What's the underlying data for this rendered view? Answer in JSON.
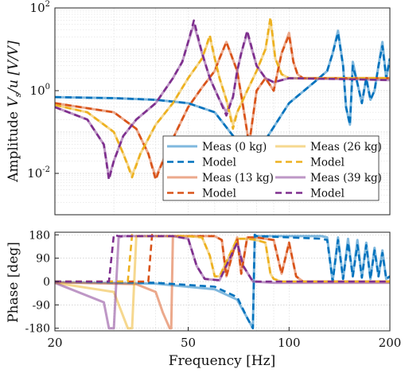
{
  "chart_data": [
    {
      "type": "line",
      "title": "",
      "xlabel": "",
      "ylabel": "Amplitude V_s/u [V/V]",
      "ylabel_parts": {
        "main": "Amplitude ",
        "math": "V",
        "sub": "s",
        "rest": "/u [V/V]"
      },
      "xscale": "log",
      "yscale": "log",
      "xlim": [
        20,
        200
      ],
      "ylim": [
        0.001,
        100
      ],
      "grid": true,
      "ytick_labels": [
        {
          "base": "10",
          "exp": "-2",
          "value": 0.01
        },
        {
          "base": "10",
          "exp": "0",
          "value": 1
        },
        {
          "base": "10",
          "exp": "2",
          "value": 100
        }
      ],
      "legend": {
        "placement": "lower-center",
        "entries": [
          {
            "label": "Meas (0 kg)",
            "series": "meas_0",
            "style": "solid-light"
          },
          {
            "label": "Meas (26 kg)",
            "series": "meas_26",
            "style": "solid-light"
          },
          {
            "label": "Model",
            "series": "model_0",
            "style": "dashed"
          },
          {
            "label": "Model",
            "series": "model_26",
            "style": "dashed"
          },
          {
            "label": "Meas (13 kg)",
            "series": "meas_13",
            "style": "solid-light"
          },
          {
            "label": "Meas (39 kg)",
            "series": "meas_39",
            "style": "solid-light"
          },
          {
            "label": "Model",
            "series": "model_13",
            "style": "dashed"
          },
          {
            "label": "Model",
            "series": "model_39",
            "style": "dashed"
          }
        ]
      },
      "series": [
        {
          "key": "meas_0",
          "color": "#0072BD",
          "dashed": false,
          "x": [
            20,
            30,
            40,
            50,
            60,
            70,
            80,
            100,
            120,
            130,
            135,
            140,
            145,
            148,
            152,
            155,
            160,
            165,
            170,
            175,
            180,
            185,
            190,
            195,
            200
          ],
          "y": [
            0.7,
            0.66,
            0.6,
            0.5,
            0.3,
            0.06,
            0.03,
            0.5,
            1.7,
            3,
            8,
            28,
            4,
            0.4,
            0.15,
            5,
            1.5,
            0.5,
            2,
            0.6,
            1,
            4,
            15,
            2,
            6
          ]
        },
        {
          "key": "model_0",
          "color": "#0072BD",
          "dashed": true,
          "x": [
            20,
            30,
            40,
            50,
            60,
            70,
            80,
            100,
            120,
            130,
            135,
            140,
            145,
            148,
            152,
            155,
            160,
            165,
            170,
            175,
            180,
            185,
            190,
            195,
            200
          ],
          "y": [
            0.7,
            0.66,
            0.6,
            0.5,
            0.3,
            0.06,
            0.03,
            0.5,
            1.7,
            3,
            8,
            25,
            4,
            0.4,
            0.15,
            4,
            1.5,
            0.5,
            2,
            0.6,
            1,
            4,
            12,
            2,
            6
          ]
        },
        {
          "key": "meas_13",
          "color": "#D95319",
          "dashed": false,
          "x": [
            20,
            30,
            35,
            38,
            40,
            42,
            45,
            50,
            55,
            60,
            62,
            65,
            70,
            73,
            76,
            80,
            85,
            90,
            95,
            100,
            103,
            106,
            110,
            120,
            150,
            200
          ],
          "y": [
            0.5,
            0.3,
            0.12,
            0.03,
            0.008,
            0.02,
            0.07,
            0.4,
            1.2,
            3,
            6,
            15,
            3,
            0.4,
            0.05,
            1,
            2,
            1,
            8,
            25,
            5,
            2.5,
            2,
            2,
            2,
            2
          ]
        },
        {
          "key": "model_13",
          "color": "#D95319",
          "dashed": true,
          "x": [
            20,
            30,
            35,
            38,
            40,
            42,
            45,
            50,
            55,
            60,
            62,
            65,
            70,
            73,
            76,
            80,
            85,
            90,
            95,
            100,
            103,
            106,
            110,
            120,
            150,
            200
          ],
          "y": [
            0.5,
            0.3,
            0.12,
            0.03,
            0.007,
            0.02,
            0.07,
            0.4,
            1.2,
            3,
            6,
            15,
            3,
            0.4,
            0.05,
            1,
            2,
            1,
            8,
            22,
            5,
            2.5,
            2,
            2,
            2,
            2
          ]
        },
        {
          "key": "meas_26",
          "color": "#EDB120",
          "dashed": false,
          "x": [
            20,
            25,
            30,
            32,
            34,
            36,
            40,
            45,
            50,
            55,
            58,
            60,
            62,
            65,
            68,
            70,
            75,
            80,
            85,
            88,
            91,
            95,
            100,
            150,
            200
          ],
          "y": [
            0.45,
            0.3,
            0.1,
            0.03,
            0.009,
            0.03,
            0.15,
            0.5,
            2,
            6,
            20,
            6,
            2,
            0.6,
            0.15,
            0.3,
            1,
            3,
            10,
            50,
            6,
            2.5,
            2,
            2,
            2
          ]
        },
        {
          "key": "model_26",
          "color": "#EDB120",
          "dashed": true,
          "x": [
            20,
            25,
            30,
            32,
            34,
            36,
            40,
            45,
            50,
            55,
            58,
            60,
            62,
            65,
            68,
            70,
            75,
            80,
            85,
            88,
            91,
            95,
            100,
            150,
            200
          ],
          "y": [
            0.45,
            0.3,
            0.1,
            0.03,
            0.008,
            0.03,
            0.15,
            0.5,
            2,
            6,
            22,
            6,
            2,
            0.6,
            0.12,
            0.3,
            1,
            3,
            10,
            60,
            6,
            2.5,
            2,
            2,
            2
          ]
        },
        {
          "key": "meas_39",
          "color": "#7E2F8E",
          "dashed": false,
          "x": [
            20,
            25,
            28,
            29,
            30,
            32,
            35,
            40,
            45,
            48,
            50,
            52,
            55,
            58,
            62,
            65,
            68,
            70,
            72,
            75,
            80,
            85,
            90,
            100,
            150,
            200
          ],
          "y": [
            0.4,
            0.2,
            0.05,
            0.008,
            0.02,
            0.08,
            0.2,
            0.5,
            2,
            5,
            15,
            40,
            8,
            2,
            0.6,
            0.3,
            0.7,
            3,
            8,
            25,
            4,
            2,
            1.6,
            2,
            1.9,
            1.8
          ]
        },
        {
          "key": "model_39",
          "color": "#7E2F8E",
          "dashed": true,
          "x": [
            20,
            25,
            28,
            29,
            30,
            32,
            35,
            40,
            45,
            48,
            50,
            52,
            55,
            58,
            62,
            65,
            68,
            70,
            72,
            75,
            80,
            85,
            90,
            100,
            150,
            200
          ],
          "y": [
            0.4,
            0.2,
            0.05,
            0.007,
            0.02,
            0.08,
            0.2,
            0.5,
            2,
            5,
            15,
            50,
            8,
            2,
            0.6,
            0.25,
            0.7,
            3,
            8,
            28,
            4,
            2,
            1.6,
            2,
            1.9,
            1.8
          ]
        }
      ]
    },
    {
      "type": "line",
      "title": "",
      "xlabel": "Frequency [Hz]",
      "ylabel": "Phase [deg]",
      "xscale": "log",
      "xlim": [
        20,
        200
      ],
      "ylim": [
        -190,
        190
      ],
      "grid": true,
      "yticks": [
        -180,
        -90,
        0,
        90,
        180
      ],
      "ytick_labels": [
        "-180",
        "-90",
        "0",
        "90",
        "180"
      ],
      "xticks": [
        20,
        50,
        100,
        200
      ],
      "xtick_labels": [
        "20",
        "50",
        "100",
        "200"
      ],
      "series": [
        {
          "key": "meas_0",
          "color": "#0072BD",
          "dashed": false,
          "x": [
            20,
            40,
            60,
            70,
            75,
            78,
            79,
            80,
            100,
            125,
            130,
            135,
            140,
            145,
            150,
            155,
            160,
            165,
            170,
            175,
            180,
            185,
            190,
            195,
            200
          ],
          "y": [
            -2,
            -8,
            -30,
            -70,
            -140,
            -180,
            180,
            175,
            175,
            175,
            170,
            0,
            170,
            10,
            165,
            20,
            160,
            15,
            150,
            10,
            130,
            20,
            120,
            10,
            20
          ]
        },
        {
          "key": "model_0",
          "color": "#0072BD",
          "dashed": true,
          "x": [
            20,
            40,
            60,
            70,
            75,
            78,
            79,
            80,
            100,
            125,
            130,
            135,
            140,
            145,
            150,
            155,
            160,
            165,
            170,
            175,
            180,
            185,
            190,
            195,
            200
          ],
          "y": [
            0,
            -5,
            -20,
            -60,
            -140,
            -180,
            180,
            175,
            170,
            165,
            160,
            0,
            160,
            10,
            150,
            20,
            140,
            15,
            140,
            10,
            120,
            20,
            110,
            10,
            20
          ]
        },
        {
          "key": "meas_13",
          "color": "#D95319",
          "dashed": false,
          "x": [
            20,
            35,
            40,
            42,
            44,
            44.5,
            45,
            60,
            63,
            65,
            70,
            72,
            75,
            80,
            90,
            95,
            100,
            105,
            110,
            150,
            200
          ],
          "y": [
            -3,
            -10,
            -40,
            -120,
            -180,
            -180,
            175,
            175,
            160,
            20,
            170,
            30,
            170,
            170,
            160,
            30,
            150,
            20,
            0,
            0,
            0
          ]
        },
        {
          "key": "model_13",
          "color": "#D95319",
          "dashed": true,
          "x": [
            20,
            35,
            38,
            39,
            40,
            60,
            63,
            65,
            70,
            72,
            75,
            80,
            90,
            95,
            100,
            105,
            110,
            150,
            200
          ],
          "y": [
            0,
            0,
            0,
            180,
            175,
            175,
            160,
            20,
            170,
            30,
            170,
            170,
            160,
            30,
            150,
            20,
            0,
            0,
            0
          ]
        },
        {
          "key": "meas_26",
          "color": "#EDB120",
          "dashed": false,
          "x": [
            20,
            30,
            33,
            34,
            35,
            36,
            50,
            55,
            58,
            60,
            62,
            70,
            75,
            80,
            85,
            88,
            90,
            95,
            100,
            150,
            200
          ],
          "y": [
            -5,
            -40,
            -180,
            -180,
            175,
            175,
            175,
            170,
            100,
            20,
            20,
            165,
            165,
            160,
            150,
            30,
            10,
            0,
            0,
            0,
            0
          ]
        },
        {
          "key": "model_26",
          "color": "#EDB120",
          "dashed": true,
          "x": [
            20,
            33,
            34,
            35,
            50,
            55,
            58,
            60,
            62,
            70,
            75,
            80,
            85,
            88,
            90,
            95,
            100,
            150,
            200
          ],
          "y": [
            0,
            0,
            180,
            175,
            175,
            170,
            100,
            20,
            20,
            165,
            165,
            160,
            150,
            30,
            10,
            0,
            0,
            0,
            0
          ]
        },
        {
          "key": "meas_39",
          "color": "#7E2F8E",
          "dashed": false,
          "x": [
            20,
            28,
            29,
            30,
            31,
            32,
            45,
            50,
            53,
            56,
            62,
            70,
            73,
            78,
            90,
            100,
            150,
            200
          ],
          "y": [
            -5,
            -80,
            -180,
            -180,
            170,
            175,
            175,
            165,
            60,
            10,
            5,
            150,
            60,
            0,
            -5,
            -5,
            -5,
            -5
          ]
        },
        {
          "key": "model_39",
          "color": "#7E2F8E",
          "dashed": true,
          "x": [
            20,
            29,
            30,
            31,
            45,
            50,
            53,
            56,
            62,
            70,
            73,
            78,
            90,
            100,
            150,
            200
          ],
          "y": [
            0,
            0,
            180,
            175,
            175,
            165,
            60,
            10,
            5,
            150,
            60,
            0,
            0,
            0,
            0,
            0
          ]
        }
      ]
    }
  ]
}
